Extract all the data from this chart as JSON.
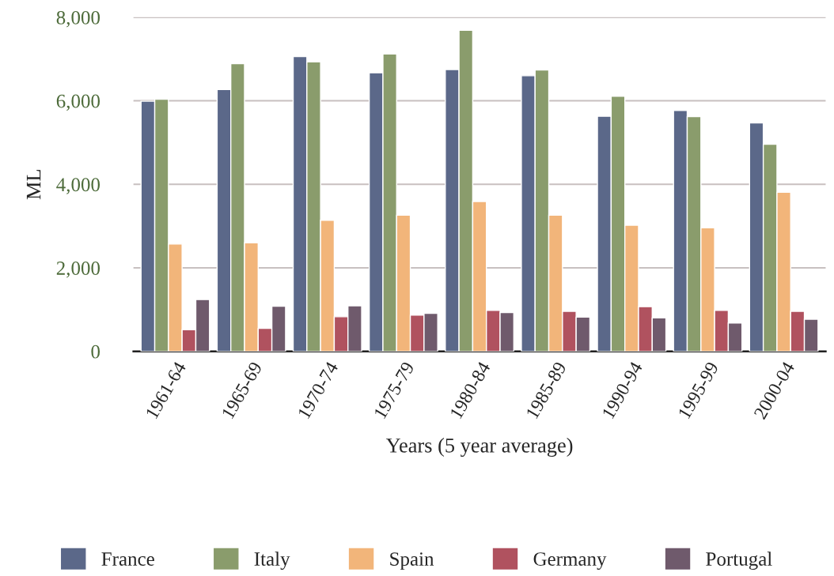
{
  "chart_data": {
    "type": "bar",
    "xlabel": "Years (5 year average)",
    "ylabel": "ML",
    "categories": [
      "1961-64",
      "1965-69",
      "1970-74",
      "1975-79",
      "1980-84",
      "1985-89",
      "1990-94",
      "1995-99",
      "2000-04"
    ],
    "series": [
      {
        "name": "France",
        "color": "#5b6889",
        "values": [
          5990,
          6270,
          7060,
          6670,
          6750,
          6600,
          5630,
          5770,
          5470
        ]
      },
      {
        "name": "Italy",
        "color": "#8a9c6c",
        "values": [
          6040,
          6890,
          6930,
          7120,
          7690,
          6740,
          6110,
          5620,
          4960
        ]
      },
      {
        "name": "Spain",
        "color": "#f2b57a",
        "values": [
          2570,
          2600,
          3140,
          3260,
          3590,
          3260,
          3020,
          2960,
          3810
        ]
      },
      {
        "name": "Germany",
        "color": "#b0525f",
        "values": [
          520,
          550,
          830,
          870,
          980,
          960,
          1070,
          980,
          960
        ]
      },
      {
        "name": "Portugal",
        "color": "#6f5a6c",
        "values": [
          1240,
          1080,
          1090,
          910,
          930,
          820,
          800,
          680,
          770
        ]
      }
    ],
    "ylim": [
      0,
      8000
    ],
    "yticks": [
      {
        "value": 0,
        "label": "0"
      },
      {
        "value": 2000,
        "label": "2,000"
      },
      {
        "value": 4000,
        "label": "4,000"
      },
      {
        "value": 6000,
        "label": "6,000"
      },
      {
        "value": 8000,
        "label": "8,000"
      }
    ],
    "grid": "y",
    "legend": "bottom"
  }
}
